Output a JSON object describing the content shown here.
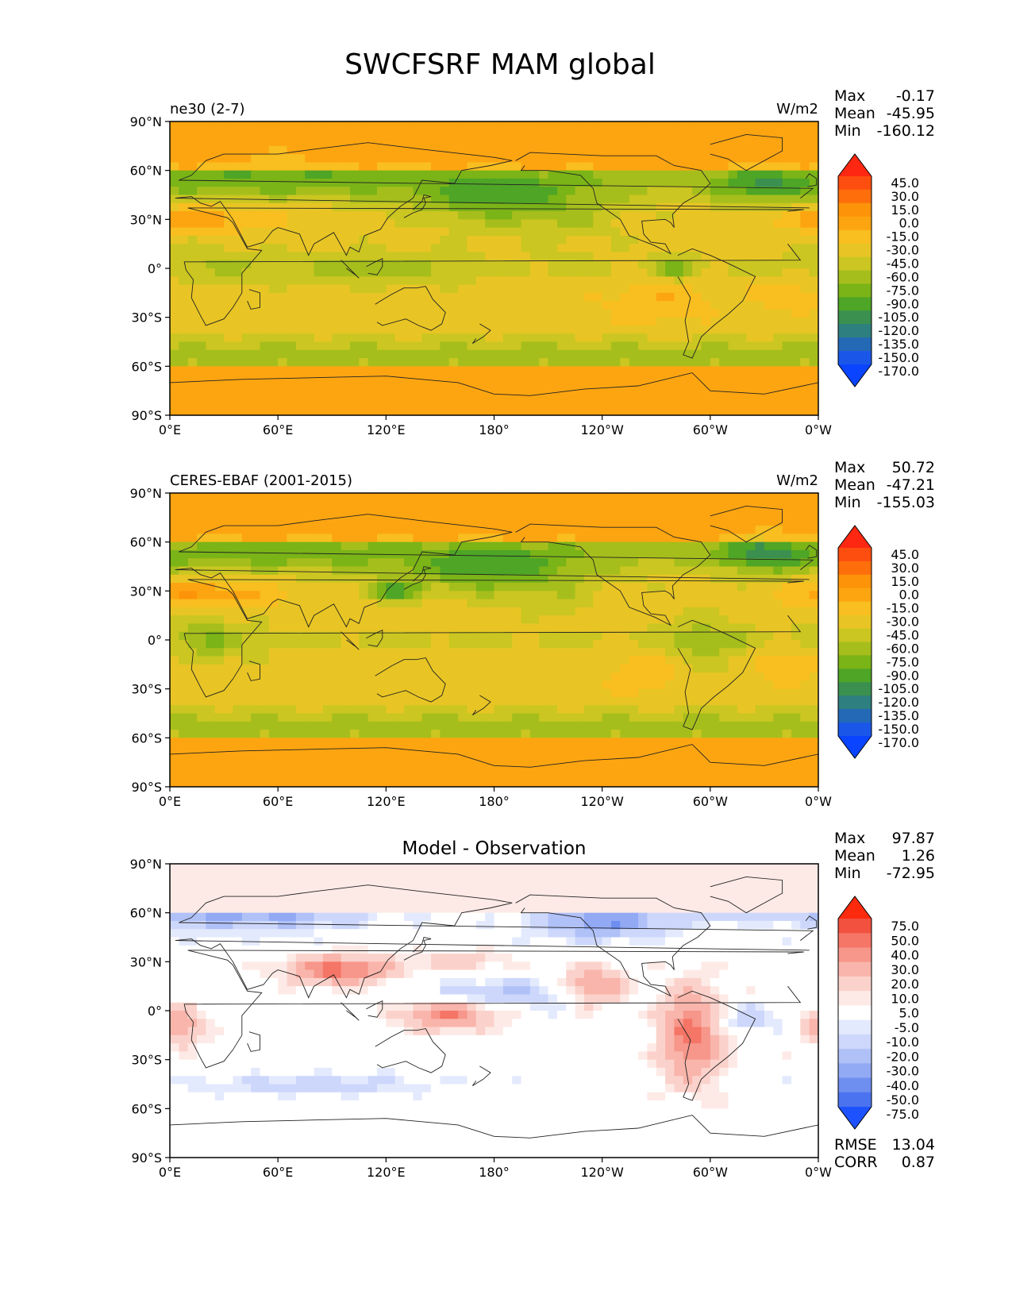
{
  "title": "SWCFSRF MAM global",
  "chart_data": [
    {
      "type": "heatmap",
      "panel_title_left": "ne30 (2-7)",
      "units": "W/m2",
      "stats": [
        {
          "label": "Max",
          "value": "-0.17"
        },
        {
          "label": "Mean",
          "value": "-45.95"
        },
        {
          "label": "Min",
          "value": "-160.12"
        }
      ],
      "colorbar": {
        "labels": [
          "45.0",
          "30.0",
          "15.0",
          "0.0",
          "-15.0",
          "-30.0",
          "-45.0",
          "-60.0",
          "-75.0",
          "-90.0",
          "-105.0",
          "-120.0",
          "-135.0",
          "-150.0",
          "-170.0"
        ],
        "colors": [
          "#fe2712",
          "#fe4e0f",
          "#fe6f0c",
          "#fd9309",
          "#fda511",
          "#f9be1f",
          "#e8c524",
          "#cbc621",
          "#a6be1c",
          "#7ab417",
          "#4ea526",
          "#3b9050",
          "#2e7f80",
          "#2369b6",
          "#1a57e8",
          "#0a44fe"
        ],
        "extend": "both"
      },
      "xticks": [
        "0°E",
        "60°E",
        "120°E",
        "180°",
        "120°W",
        "60°W",
        "0°W"
      ],
      "yticks": [
        "90°N",
        "60°N",
        "30°N",
        "0°",
        "30°S",
        "60°S",
        "90°S"
      ],
      "xlim": [
        0,
        360
      ],
      "ylim": [
        -90,
        90
      ]
    },
    {
      "type": "heatmap",
      "panel_title_left": "CERES-EBAF (2001-2015)",
      "units": "W/m2",
      "stats": [
        {
          "label": "Max",
          "value": "50.72"
        },
        {
          "label": "Mean",
          "value": "-47.21"
        },
        {
          "label": "Min",
          "value": "-155.03"
        }
      ],
      "colorbar": {
        "labels": [
          "45.0",
          "30.0",
          "15.0",
          "0.0",
          "-15.0",
          "-30.0",
          "-45.0",
          "-60.0",
          "-75.0",
          "-90.0",
          "-105.0",
          "-120.0",
          "-135.0",
          "-150.0",
          "-170.0"
        ],
        "colors": [
          "#fe2712",
          "#fe4e0f",
          "#fe6f0c",
          "#fd9309",
          "#fda511",
          "#f9be1f",
          "#e8c524",
          "#cbc621",
          "#a6be1c",
          "#7ab417",
          "#4ea526",
          "#3b9050",
          "#2e7f80",
          "#2369b6",
          "#1a57e8",
          "#0a44fe"
        ],
        "extend": "both"
      },
      "xticks": [
        "0°E",
        "60°E",
        "120°E",
        "180°",
        "120°W",
        "60°W",
        "0°W"
      ],
      "yticks": [
        "90°N",
        "60°N",
        "30°N",
        "0°",
        "30°S",
        "60°S",
        "90°S"
      ],
      "xlim": [
        0,
        360
      ],
      "ylim": [
        -90,
        90
      ]
    },
    {
      "type": "heatmap",
      "panel_title_center": "Model - Observation",
      "stats": [
        {
          "label": "Max",
          "value": "97.87"
        },
        {
          "label": "Mean",
          "value": "1.26"
        },
        {
          "label": "Min",
          "value": "-72.95"
        }
      ],
      "colorbar": {
        "labels": [
          "75.0",
          "50.0",
          "40.0",
          "30.0",
          "20.0",
          "10.0",
          "5.0",
          "-5.0",
          "-10.0",
          "-20.0",
          "-30.0",
          "-40.0",
          "-50.0",
          "-75.0"
        ],
        "colors": [
          "#fe2a0e",
          "#f2513f",
          "#f57566",
          "#f7968a",
          "#f9b5ab",
          "#fbd2cb",
          "#fdeae6",
          "#ffffff",
          "#e4eafd",
          "#ccd7fb",
          "#b0c1f8",
          "#92a9f4",
          "#6f8ff0",
          "#4b73ef",
          "#1e52fe"
        ],
        "extend": "both"
      },
      "metrics": [
        {
          "label": "RMSE",
          "value": "13.04"
        },
        {
          "label": "CORR",
          "value": "0.87"
        }
      ],
      "xticks": [
        "0°E",
        "60°E",
        "120°E",
        "180°",
        "120°W",
        "60°W",
        "0°W"
      ],
      "yticks": [
        "90°N",
        "60°N",
        "30°N",
        "0°",
        "30°S",
        "60°S",
        "90°S"
      ],
      "xlim": [
        0,
        360
      ],
      "ylim": [
        -90,
        90
      ]
    }
  ]
}
